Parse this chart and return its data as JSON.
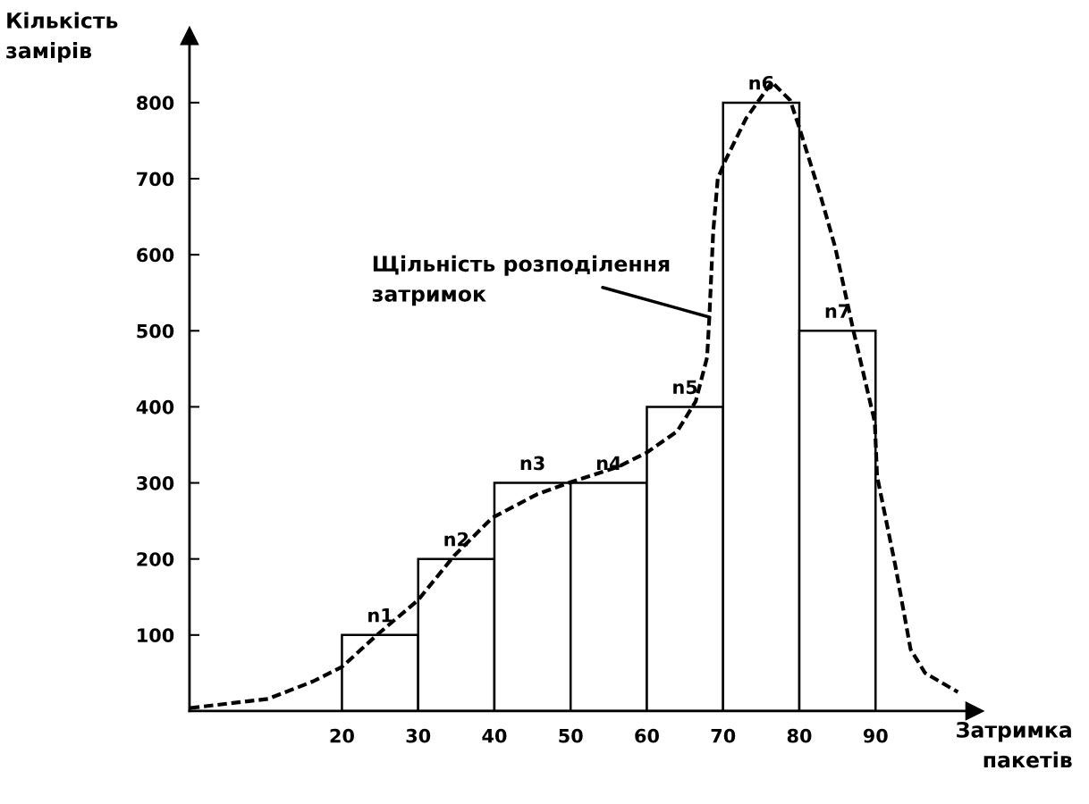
{
  "chart_data": {
    "type": "histogram",
    "xlabel": "Затримка\nпакетів",
    "ylabel": "Кількість\nзамірів",
    "bins": [
      20,
      30,
      40,
      50,
      60,
      70,
      80,
      90
    ],
    "values": [
      100,
      200,
      300,
      300,
      400,
      800,
      500
    ],
    "value_labels": [
      "n1",
      "n2",
      "n3",
      "n4",
      "n5",
      "n6",
      "n7"
    ],
    "color": "#ffffff",
    "series": [
      {
        "type": "line",
        "color": "#000000",
        "line_style": "dashed",
        "x": [
          0.1,
          10.3,
          16.2,
          20,
          24.7,
          30,
          34.7,
          39.7,
          45.6,
          50,
          56.2,
          60,
          64,
          66.4,
          67.9,
          68.2,
          68.7,
          69.3,
          70.3,
          73,
          76.4,
          78.8,
          80,
          82.8,
          84.7,
          87.1,
          89.9,
          90.2,
          92.6,
          94.6,
          96.5,
          100.8
        ],
        "values": [
          4,
          16,
          39,
          58,
          101,
          146,
          204,
          254,
          285,
          301,
          321,
          340,
          368,
          407,
          465,
          518,
          630,
          700,
          724,
          779,
          827,
          803,
          767,
          677,
          610,
          500,
          380,
          309,
          191,
          81,
          50,
          25
        ]
      }
    ],
    "annotations": [
      {
        "text": "Щільність розподілення\nзатримок",
        "x": 68.2,
        "y": 518
      }
    ],
    "xlim": [
      0,
      103
    ],
    "ylim": [
      0,
      888
    ],
    "xticks": [
      20,
      30,
      40,
      50,
      60,
      70,
      80,
      90
    ],
    "yticks": [
      100,
      200,
      300,
      400,
      500,
      600,
      700,
      800
    ],
    "grid": false
  }
}
